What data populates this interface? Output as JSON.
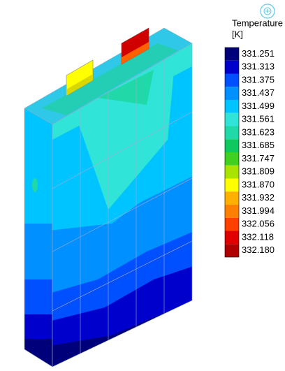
{
  "legend": {
    "title": "Temperature",
    "unit": "[K]",
    "levels": [
      {
        "label": "331.251",
        "color": "#00007a"
      },
      {
        "label": "331.313",
        "color": "#0000cc"
      },
      {
        "label": "331.375",
        "color": "#0050ff"
      },
      {
        "label": "331.437",
        "color": "#0090ff"
      },
      {
        "label": "331.499",
        "color": "#00c4ff"
      },
      {
        "label": "331.561",
        "color": "#30e4d8"
      },
      {
        "label": "331.623",
        "color": "#20d8a8"
      },
      {
        "label": "331.685",
        "color": "#10c860"
      },
      {
        "label": "331.747",
        "color": "#40d020"
      },
      {
        "label": "331.809",
        "color": "#a8e400"
      },
      {
        "label": "331.870",
        "color": "#ffff00"
      },
      {
        "label": "331.932",
        "color": "#ffb000"
      },
      {
        "label": "331.994",
        "color": "#ff8000"
      },
      {
        "label": "332.056",
        "color": "#ff4000"
      },
      {
        "label": "332.118",
        "color": "#e00000"
      },
      {
        "label": "332.180",
        "color": "#b00000"
      }
    ]
  }
}
